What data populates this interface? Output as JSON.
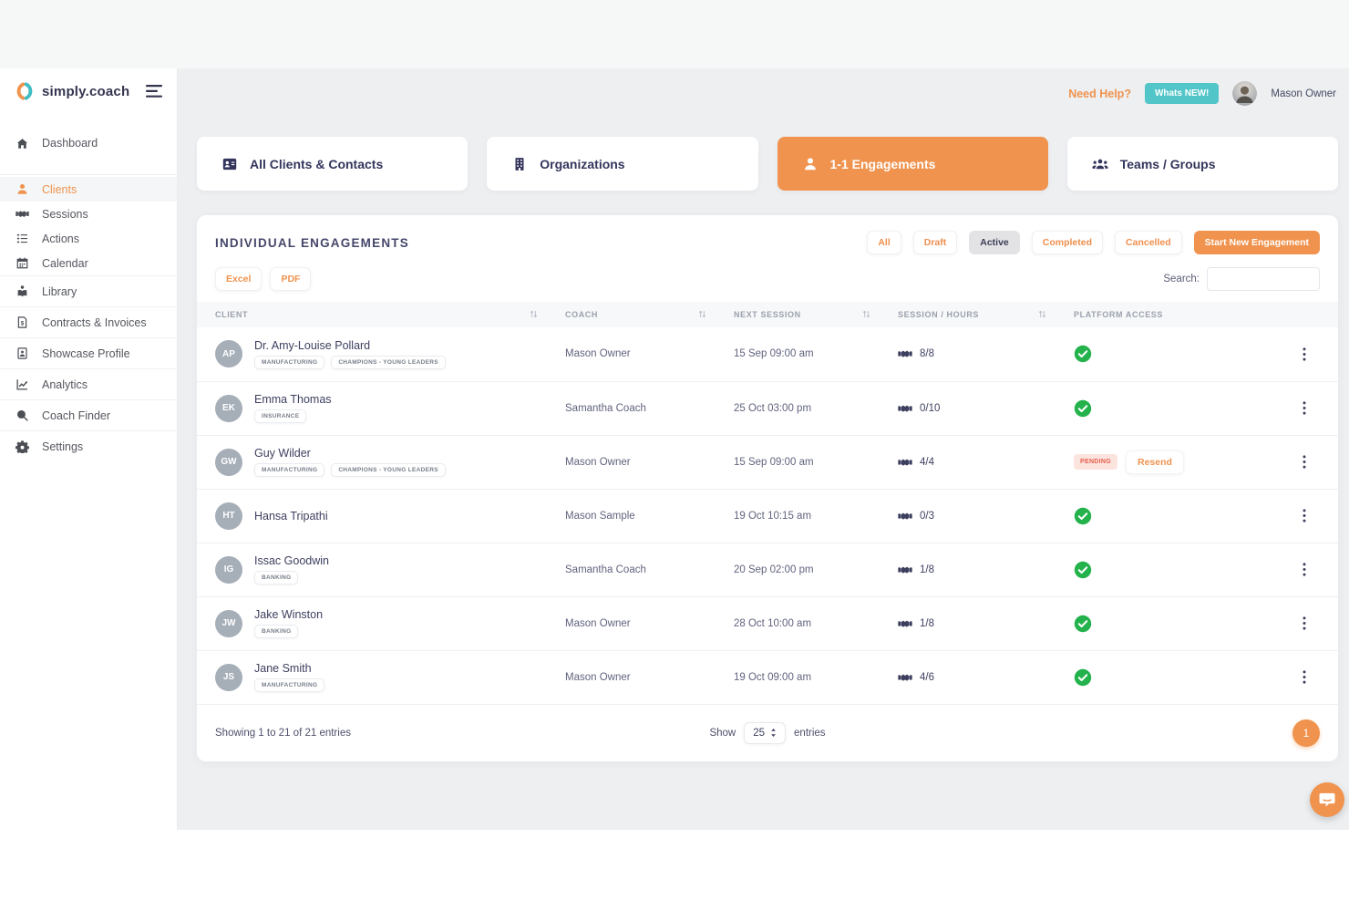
{
  "brand": {
    "name": "simply.coach"
  },
  "header": {
    "need_help_label": "Need Help?",
    "whats_new_label": "Whats NEW!",
    "user_name": "Mason Owner"
  },
  "sidebar": {
    "items": [
      {
        "label": "Dashboard",
        "icon": "home-icon",
        "active": false,
        "size": "lg",
        "divider_after": true
      },
      {
        "label": "Clients",
        "icon": "user-icon",
        "active": true
      },
      {
        "label": "Sessions",
        "icon": "handshake-icon",
        "active": false
      },
      {
        "label": "Actions",
        "icon": "checklist-icon",
        "active": false
      },
      {
        "label": "Calendar",
        "icon": "calendar-icon",
        "active": false
      },
      {
        "label": "Library",
        "icon": "library-icon",
        "active": false,
        "divided": true
      },
      {
        "label": "Contracts & Invoices",
        "icon": "invoice-icon",
        "active": false,
        "divided": true
      },
      {
        "label": "Showcase Profile",
        "icon": "profile-card-icon",
        "active": false,
        "divided": true
      },
      {
        "label": "Analytics",
        "icon": "analytics-icon",
        "active": false,
        "divided": true
      },
      {
        "label": "Coach Finder",
        "icon": "search-icon",
        "active": false,
        "divided": true
      },
      {
        "label": "Settings",
        "icon": "settings-icon",
        "active": false,
        "divided": true
      }
    ]
  },
  "tabs": [
    {
      "label": "All Clients & Contacts",
      "icon": "contact-card-icon",
      "active": false
    },
    {
      "label": "Organizations",
      "icon": "building-icon",
      "active": false
    },
    {
      "label": "1-1 Engagements",
      "icon": "user-icon",
      "active": true
    },
    {
      "label": "Teams / Groups",
      "icon": "users-group-icon",
      "active": false
    }
  ],
  "panel": {
    "title": "INDIVIDUAL ENGAGEMENTS",
    "filters": [
      {
        "label": "All",
        "active": false
      },
      {
        "label": "Draft",
        "active": false
      },
      {
        "label": "Active",
        "active": true
      },
      {
        "label": "Completed",
        "active": false
      },
      {
        "label": "Cancelled",
        "active": false
      }
    ],
    "start_new_label": "Start New Engagement",
    "export_buttons": [
      {
        "label": "Excel"
      },
      {
        "label": "PDF"
      }
    ],
    "search_label": "Search:",
    "table": {
      "columns": [
        {
          "label": "CLIENT",
          "sortable": true
        },
        {
          "label": "COACH",
          "sortable": true
        },
        {
          "label": "NEXT SESSION",
          "sortable": true
        },
        {
          "label": "SESSION / HOURS",
          "sortable": true
        },
        {
          "label": "PLATFORM ACCESS",
          "sortable": false
        }
      ],
      "pending_label": "PENDING",
      "resend_label": "Resend",
      "rows": [
        {
          "initials": "AP",
          "name": "Dr. Amy-Louise Pollard",
          "tags": [
            "MANUFACTURING",
            "CHAMPIONS - YOUNG LEADERS"
          ],
          "coach": "Mason Owner",
          "next_session": "15 Sep 09:00 am",
          "sessions": "8/8",
          "access": "granted"
        },
        {
          "initials": "EK",
          "name": "Emma Thomas",
          "tags": [
            "INSURANCE"
          ],
          "coach": "Samantha Coach",
          "next_session": "25 Oct 03:00 pm",
          "sessions": "0/10",
          "access": "granted"
        },
        {
          "initials": "GW",
          "name": "Guy Wilder",
          "tags": [
            "MANUFACTURING",
            "CHAMPIONS - YOUNG LEADERS"
          ],
          "coach": "Mason Owner",
          "next_session": "15 Sep 09:00 am",
          "sessions": "4/4",
          "access": "pending"
        },
        {
          "initials": "HT",
          "name": "Hansa Tripathi",
          "tags": [],
          "coach": "Mason Sample",
          "next_session": "19 Oct 10:15 am",
          "sessions": "0/3",
          "access": "granted"
        },
        {
          "initials": "IG",
          "name": "Issac Goodwin",
          "tags": [
            "BANKING"
          ],
          "coach": "Samantha Coach",
          "next_session": "20 Sep 02:00 pm",
          "sessions": "1/8",
          "access": "granted"
        },
        {
          "initials": "JW",
          "name": "Jake Winston",
          "tags": [
            "BANKING"
          ],
          "coach": "Mason Owner",
          "next_session": "28 Oct 10:00 am",
          "sessions": "1/8",
          "access": "granted"
        },
        {
          "initials": "JS",
          "name": "Jane Smith",
          "tags": [
            "MANUFACTURING"
          ],
          "coach": "Mason Owner",
          "next_session": "19 Oct 09:00 am",
          "sessions": "4/6",
          "access": "granted"
        }
      ]
    },
    "footer": {
      "showing_text": "Showing 1 to 21 of 21 entries",
      "show_label": "Show",
      "page_size": "25",
      "entries_label": "entries",
      "current_page": "1"
    }
  },
  "colors": {
    "accent_orange": "#f0934e",
    "teal": "#52c5c9",
    "navy_text": "#3d3f5f",
    "success_green": "#23b24b",
    "pending_bg": "#fbe3de",
    "pending_text": "#e8604c",
    "content_bg": "#edeff1"
  }
}
